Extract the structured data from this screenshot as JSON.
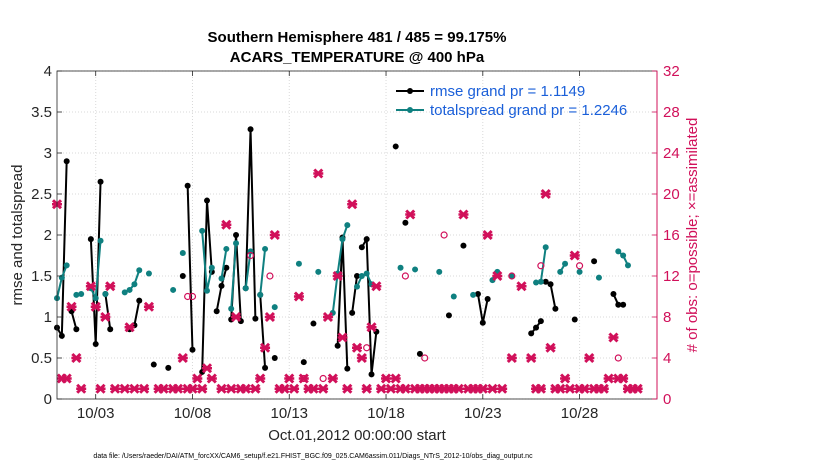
{
  "chart_data": {
    "type": "line",
    "title": [
      "Southern Hemisphere 481 / 485 = 99.175%",
      "ACARS_TEMPERATURE @ 400 hPa"
    ],
    "xlabel": "Oct.01,2012 00:00:00 start",
    "ylabel": "rmse and totalspread",
    "ylabel_right": "# of obs: o=possible; ×=assimilated",
    "xlim": [
      1.0,
      32.0
    ],
    "ylim": [
      0,
      4
    ],
    "ylim_right": [
      0,
      32
    ],
    "xticks": [
      {
        "x": 3,
        "label": "10/03"
      },
      {
        "x": 8,
        "label": "10/08"
      },
      {
        "x": 13,
        "label": "10/13"
      },
      {
        "x": 18,
        "label": "10/18"
      },
      {
        "x": 23,
        "label": "10/23"
      },
      {
        "x": 28,
        "label": "10/28"
      }
    ],
    "yticks": [
      "0",
      "0.5",
      "1",
      "1.5",
      "2",
      "2.5",
      "3",
      "3.5",
      "4"
    ],
    "yticks_right": [
      "0",
      "4",
      "8",
      "12",
      "16",
      "20",
      "24",
      "28",
      "32"
    ],
    "grid": true,
    "legend_position": "top-right",
    "series": [
      {
        "name": "rmse grand pr = 1.1149",
        "color": "#000000",
        "marker": "dot",
        "segments": [
          [
            [
              1.0,
              0.87
            ],
            [
              1.25,
              0.77
            ],
            [
              1.5,
              2.9
            ]
          ],
          [
            [
              1.75,
              1.07
            ],
            [
              2.0,
              0.85
            ]
          ],
          [
            [
              2.75,
              1.95
            ],
            [
              3.0,
              0.67
            ],
            [
              3.25,
              2.65
            ]
          ],
          [
            [
              3.5,
              1.28
            ],
            [
              3.75,
              0.85
            ]
          ],
          [
            [
              4.75,
              0.85
            ],
            [
              5.0,
              0.9
            ],
            [
              5.25,
              1.2
            ]
          ],
          [
            [
              6.0,
              0.42
            ]
          ],
          [
            [
              6.75,
              0.38
            ]
          ],
          [
            [
              7.5,
              1.5
            ]
          ],
          [
            [
              7.75,
              2.6
            ],
            [
              8.0,
              0.6
            ]
          ],
          [
            [
              8.5,
              0.33
            ],
            [
              8.75,
              2.42
            ],
            [
              9.0,
              1.55
            ]
          ],
          [
            [
              9.25,
              1.07
            ],
            [
              9.5,
              1.38
            ],
            [
              9.75,
              1.6
            ]
          ],
          [
            [
              10.0,
              0.97
            ],
            [
              10.25,
              2.0
            ],
            [
              10.5,
              0.95
            ]
          ],
          [
            [
              10.75,
              1.35
            ],
            [
              11.0,
              3.29
            ],
            [
              11.25,
              0.98
            ]
          ],
          [
            [
              11.5,
              1.27
            ],
            [
              11.75,
              0.38
            ]
          ],
          [
            [
              12.25,
              0.5
            ]
          ],
          [
            [
              13.75,
              0.45
            ]
          ],
          [
            [
              14.25,
              0.92
            ]
          ],
          [
            [
              15.5,
              0.65
            ],
            [
              15.75,
              1.97
            ],
            [
              16.0,
              0.37
            ]
          ],
          [
            [
              16.25,
              1.05
            ],
            [
              16.5,
              1.5
            ]
          ],
          [
            [
              16.75,
              1.85
            ],
            [
              17.0,
              1.95
            ],
            [
              17.25,
              0.3
            ],
            [
              17.5,
              0.82
            ]
          ],
          [
            [
              18.5,
              3.08
            ]
          ],
          [
            [
              19.0,
              2.15
            ]
          ],
          [
            [
              19.75,
              0.55
            ]
          ],
          [
            [
              21.25,
              1.02
            ]
          ],
          [
            [
              22.0,
              1.87
            ]
          ],
          [
            [
              22.75,
              1.28
            ],
            [
              23.0,
              0.93
            ],
            [
              23.25,
              1.22
            ]
          ],
          [
            [
              25.5,
              0.8
            ],
            [
              25.75,
              0.87
            ],
            [
              26.0,
              0.95
            ]
          ],
          [
            [
              26.25,
              1.43
            ],
            [
              26.5,
              1.4
            ],
            [
              26.75,
              1.1
            ]
          ],
          [
            [
              27.75,
              0.97
            ]
          ],
          [
            [
              28.75,
              1.68
            ]
          ],
          [
            [
              29.75,
              1.28
            ],
            [
              30.0,
              1.15
            ],
            [
              30.25,
              1.15
            ]
          ]
        ]
      },
      {
        "name": "totalspread grand pr = 1.2246",
        "color": "#0f8080",
        "marker": "dot",
        "segments": [
          [
            [
              1.0,
              1.23
            ],
            [
              1.25,
              1.48
            ],
            [
              1.5,
              1.63
            ]
          ],
          [
            [
              2.0,
              1.27
            ],
            [
              2.25,
              1.28
            ]
          ],
          [
            [
              2.75,
              1.35
            ],
            [
              3.0,
              1.23
            ],
            [
              3.25,
              1.93
            ]
          ],
          [
            [
              3.5,
              1.28
            ]
          ],
          [
            [
              4.5,
              1.3
            ],
            [
              4.75,
              1.33
            ],
            [
              5.0,
              1.4
            ],
            [
              5.25,
              1.57
            ]
          ],
          [
            [
              5.75,
              1.53
            ]
          ],
          [
            [
              7.0,
              1.33
            ]
          ],
          [
            [
              7.5,
              1.78
            ]
          ],
          [
            [
              8.5,
              2.05
            ],
            [
              8.75,
              1.32
            ],
            [
              9.0,
              1.6
            ]
          ],
          [
            [
              9.5,
              1.47
            ],
            [
              9.75,
              1.83
            ]
          ],
          [
            [
              10.0,
              1.1
            ],
            [
              10.25,
              1.9
            ]
          ],
          [
            [
              10.75,
              1.35
            ],
            [
              11.0,
              1.8
            ]
          ],
          [
            [
              11.5,
              1.27
            ],
            [
              11.75,
              1.83
            ]
          ],
          [
            [
              12.25,
              1.12
            ]
          ],
          [
            [
              13.5,
              1.65
            ]
          ],
          [
            [
              14.5,
              1.55
            ]
          ],
          [
            [
              15.25,
              1.05
            ],
            [
              15.5,
              1.53
            ],
            [
              15.75,
              1.95
            ],
            [
              16.0,
              2.12
            ]
          ],
          [
            [
              16.5,
              1.37
            ],
            [
              16.75,
              1.5
            ]
          ],
          [
            [
              17.0,
              1.53
            ],
            [
              17.25,
              1.4
            ]
          ],
          [
            [
              18.75,
              1.6
            ]
          ],
          [
            [
              19.5,
              1.58
            ]
          ],
          [
            [
              20.75,
              1.55
            ]
          ],
          [
            [
              21.5,
              1.25
            ]
          ],
          [
            [
              22.5,
              1.27
            ]
          ],
          [
            [
              23.5,
              1.45
            ],
            [
              23.75,
              1.55
            ]
          ],
          [
            [
              24.5,
              1.5
            ]
          ],
          [
            [
              25.75,
              1.42
            ],
            [
              26.0,
              1.43
            ],
            [
              26.25,
              1.85
            ]
          ],
          [
            [
              27.0,
              1.55
            ],
            [
              27.25,
              1.65
            ]
          ],
          [
            [
              28.0,
              1.55
            ]
          ],
          [
            [
              29.0,
              1.48
            ]
          ],
          [
            [
              30.0,
              1.8
            ],
            [
              30.25,
              1.75
            ],
            [
              30.5,
              1.63
            ]
          ]
        ]
      },
      {
        "name": "obs possible",
        "color": "#d1105a",
        "marker": "o",
        "axis": "right",
        "points": [
          [
            7.75,
            10
          ],
          [
            8.0,
            10
          ],
          [
            11.0,
            14
          ],
          [
            12.0,
            12
          ],
          [
            13.75,
            2
          ],
          [
            14.75,
            2
          ],
          [
            17.0,
            5
          ],
          [
            19.0,
            12
          ],
          [
            20.0,
            4
          ],
          [
            21.0,
            16
          ],
          [
            24.5,
            12
          ],
          [
            26.0,
            13
          ],
          [
            28.0,
            13
          ],
          [
            30.0,
            4
          ]
        ]
      },
      {
        "name": "obs assimilated",
        "color": "#d1105a",
        "marker": "x",
        "axis": "right",
        "points": [
          [
            1.0,
            19
          ],
          [
            1.25,
            2
          ],
          [
            1.5,
            2
          ],
          [
            1.75,
            9
          ],
          [
            2.0,
            4
          ],
          [
            2.25,
            1
          ],
          [
            2.75,
            11
          ],
          [
            3.0,
            9
          ],
          [
            3.25,
            1
          ],
          [
            3.5,
            8
          ],
          [
            3.75,
            11
          ],
          [
            4.0,
            1
          ],
          [
            4.5,
            1
          ],
          [
            4.75,
            7
          ],
          [
            5.0,
            1
          ],
          [
            5.5,
            1
          ],
          [
            5.75,
            9
          ],
          [
            6.25,
            1
          ],
          [
            6.5,
            1
          ],
          [
            7.0,
            1
          ],
          [
            7.25,
            1
          ],
          [
            7.5,
            4
          ],
          [
            7.75,
            1
          ],
          [
            8.0,
            1
          ],
          [
            8.25,
            2
          ],
          [
            8.5,
            1
          ],
          [
            8.75,
            3
          ],
          [
            9.0,
            2
          ],
          [
            9.5,
            1
          ],
          [
            9.75,
            17
          ],
          [
            10.0,
            1
          ],
          [
            10.25,
            8
          ],
          [
            10.5,
            1
          ],
          [
            10.75,
            1
          ],
          [
            11.25,
            1
          ],
          [
            11.5,
            2
          ],
          [
            11.75,
            5
          ],
          [
            12.0,
            8
          ],
          [
            12.25,
            16
          ],
          [
            12.5,
            1
          ],
          [
            12.75,
            1
          ],
          [
            13.0,
            2
          ],
          [
            13.25,
            1
          ],
          [
            13.5,
            10
          ],
          [
            13.75,
            2
          ],
          [
            14.0,
            1
          ],
          [
            14.25,
            1
          ],
          [
            14.5,
            22
          ],
          [
            14.75,
            1
          ],
          [
            15.0,
            8
          ],
          [
            15.25,
            2
          ],
          [
            15.5,
            12
          ],
          [
            15.75,
            6
          ],
          [
            16.0,
            1
          ],
          [
            16.25,
            19
          ],
          [
            16.5,
            5
          ],
          [
            16.75,
            4
          ],
          [
            17.0,
            1
          ],
          [
            17.25,
            7
          ],
          [
            17.5,
            11
          ],
          [
            17.75,
            1
          ],
          [
            18.0,
            2
          ],
          [
            18.25,
            1
          ],
          [
            18.5,
            2
          ],
          [
            18.75,
            1
          ],
          [
            19.0,
            1
          ],
          [
            19.25,
            18
          ],
          [
            19.5,
            1
          ],
          [
            19.75,
            1
          ],
          [
            20.0,
            1
          ],
          [
            20.25,
            1
          ],
          [
            20.5,
            1
          ],
          [
            20.75,
            1
          ],
          [
            21.0,
            1
          ],
          [
            21.25,
            1
          ],
          [
            21.5,
            1
          ],
          [
            21.75,
            1
          ],
          [
            22.0,
            18
          ],
          [
            22.25,
            1
          ],
          [
            22.5,
            1
          ],
          [
            22.75,
            1
          ],
          [
            23.0,
            1
          ],
          [
            23.25,
            16
          ],
          [
            23.5,
            1
          ],
          [
            23.75,
            12
          ],
          [
            24.0,
            1
          ],
          [
            24.5,
            4
          ],
          [
            25.0,
            11
          ],
          [
            25.5,
            4
          ],
          [
            25.75,
            1
          ],
          [
            26.0,
            1
          ],
          [
            26.25,
            20
          ],
          [
            26.5,
            5
          ],
          [
            26.75,
            1
          ],
          [
            27.0,
            1
          ],
          [
            27.25,
            2
          ],
          [
            27.5,
            1
          ],
          [
            27.75,
            14
          ],
          [
            28.0,
            1
          ],
          [
            28.25,
            1
          ],
          [
            28.5,
            4
          ],
          [
            28.75,
            1
          ],
          [
            29.0,
            1
          ],
          [
            29.25,
            1
          ],
          [
            29.5,
            2
          ],
          [
            29.75,
            6
          ],
          [
            30.0,
            2
          ],
          [
            30.25,
            2
          ],
          [
            30.5,
            1
          ],
          [
            30.75,
            1
          ],
          [
            31.0,
            1
          ]
        ]
      }
    ],
    "note": "data file: /Users/raeder/DAI/ATM_forcXX/CAM6_setup/f.e21.FHIST_BGC.f09_025.CAM6assim.011/Diags_NTrS_2012-10/obs_diag_output.nc"
  }
}
